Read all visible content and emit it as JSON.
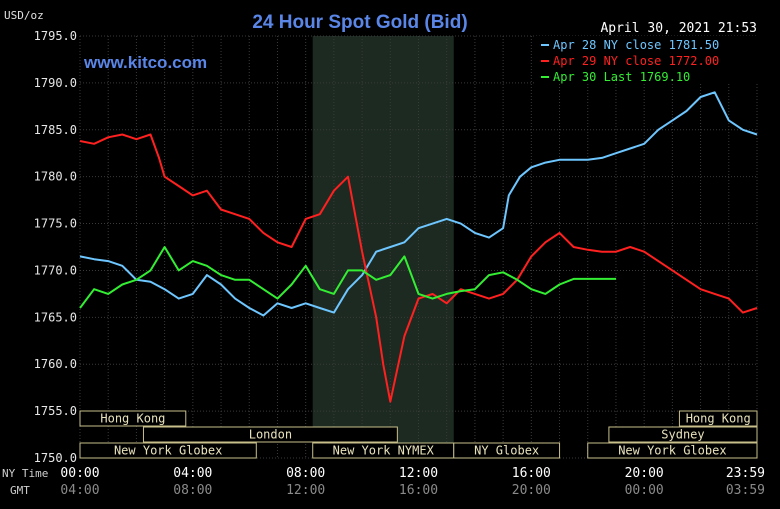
{
  "header": {
    "unit": "USD/oz",
    "title": "24 Hour Spot Gold (Bid)",
    "timestamp": "April 30, 2021 21:53",
    "brand": "www.kitco.com"
  },
  "legend": [
    {
      "text": "Apr 28 NY close 1781.50",
      "color": "#6ec6ff"
    },
    {
      "text": "Apr 29 NY close 1772.00",
      "color": "#ff2020"
    },
    {
      "text": "Apr 30 Last 1769.10",
      "color": "#33ee33"
    }
  ],
  "axes_labels": {
    "nytime": "NY Time",
    "gmt": "GMT"
  },
  "sessions": [
    {
      "label": "Hong Kong",
      "row": 0,
      "start": 0,
      "end": 3.75
    },
    {
      "label": "Hong Kong",
      "row": 0,
      "start": 21.25,
      "end": 24
    },
    {
      "label": "London",
      "row": 1,
      "start": 2.25,
      "end": 11.25
    },
    {
      "label": "Sydney",
      "row": 1,
      "start": 18.75,
      "end": 24
    },
    {
      "label": "New York Globex",
      "row": 2,
      "start": 0,
      "end": 6.25
    },
    {
      "label": "New York NYMEX",
      "row": 2,
      "start": 8.25,
      "end": 13.25
    },
    {
      "label": "NY Globex",
      "row": 2,
      "start": 13.25,
      "end": 17
    },
    {
      "label": "New York Globex",
      "row": 2,
      "start": 18,
      "end": 24
    }
  ],
  "chart_data": {
    "type": "line",
    "title": "24 Hour Spot Gold (Bid)",
    "ylabel": "USD/oz",
    "ylim": [
      1750,
      1795
    ],
    "yticks": [
      "1795.0",
      "1790.0",
      "1785.0",
      "1780.0",
      "1775.0",
      "1770.0",
      "1765.0",
      "1760.0",
      "1755.0",
      "1750.0"
    ],
    "xlim": [
      0,
      24
    ],
    "xticks_ny": [
      "00:00",
      "04:00",
      "08:00",
      "12:00",
      "16:00",
      "20:00",
      "23:59"
    ],
    "xticks_gmt": [
      "04:00",
      "08:00",
      "12:00",
      "16:00",
      "20:00",
      "00:00",
      "03:59"
    ],
    "grid": true,
    "legend_position": "top-right",
    "shaded_region": [
      8.25,
      13.25
    ],
    "series": [
      {
        "name": "Apr 28 NY close 1781.50",
        "color": "#6ec6ff",
        "points": [
          [
            0,
            1771.5
          ],
          [
            0.5,
            1771.2
          ],
          [
            1,
            1771
          ],
          [
            1.5,
            1770.5
          ],
          [
            2,
            1769
          ],
          [
            2.5,
            1768.8
          ],
          [
            3,
            1768
          ],
          [
            3.5,
            1767
          ],
          [
            4,
            1767.5
          ],
          [
            4.5,
            1769.5
          ],
          [
            5,
            1768.5
          ],
          [
            5.5,
            1767
          ],
          [
            6,
            1766
          ],
          [
            6.5,
            1765.2
          ],
          [
            7,
            1766.5
          ],
          [
            7.5,
            1766
          ],
          [
            8,
            1766.5
          ],
          [
            8.5,
            1766
          ],
          [
            9,
            1765.5
          ],
          [
            9.5,
            1768
          ],
          [
            10,
            1769.5
          ],
          [
            10.5,
            1772
          ],
          [
            11,
            1772.5
          ],
          [
            11.5,
            1773
          ],
          [
            12,
            1774.5
          ],
          [
            12.5,
            1775
          ],
          [
            13,
            1775.5
          ],
          [
            13.5,
            1775
          ],
          [
            14,
            1774
          ],
          [
            14.5,
            1773.5
          ],
          [
            15,
            1774.5
          ],
          [
            15.2,
            1778
          ],
          [
            15.6,
            1780
          ],
          [
            16,
            1781
          ],
          [
            16.5,
            1781.5
          ],
          [
            17,
            1781.8
          ],
          [
            17.5,
            1781.8
          ],
          [
            18,
            1781.8
          ],
          [
            18.5,
            1782
          ],
          [
            19,
            1782.5
          ],
          [
            19.5,
            1783
          ],
          [
            20,
            1783.5
          ],
          [
            20.5,
            1785
          ],
          [
            21,
            1786
          ],
          [
            21.5,
            1787
          ],
          [
            22,
            1788.5
          ],
          [
            22.5,
            1789
          ],
          [
            23,
            1786
          ],
          [
            23.5,
            1785
          ],
          [
            24,
            1784.5
          ]
        ]
      },
      {
        "name": "Apr 29 NY close 1772.00",
        "color": "#ff2020",
        "points": [
          [
            0,
            1783.8
          ],
          [
            0.5,
            1783.5
          ],
          [
            1,
            1784.2
          ],
          [
            1.5,
            1784.5
          ],
          [
            2,
            1784
          ],
          [
            2.5,
            1784.5
          ],
          [
            2.8,
            1782
          ],
          [
            3,
            1780
          ],
          [
            3.5,
            1779
          ],
          [
            4,
            1778
          ],
          [
            4.5,
            1778.5
          ],
          [
            5,
            1776.5
          ],
          [
            5.5,
            1776
          ],
          [
            6,
            1775.5
          ],
          [
            6.5,
            1774
          ],
          [
            7,
            1773
          ],
          [
            7.5,
            1772.5
          ],
          [
            8,
            1775.5
          ],
          [
            8.5,
            1776
          ],
          [
            9,
            1778.5
          ],
          [
            9.5,
            1780
          ],
          [
            10,
            1772
          ],
          [
            10.5,
            1765
          ],
          [
            10.75,
            1760
          ],
          [
            11,
            1756
          ],
          [
            11.5,
            1763
          ],
          [
            12,
            1767
          ],
          [
            12.5,
            1767.5
          ],
          [
            13,
            1766.5
          ],
          [
            13.5,
            1768
          ],
          [
            14,
            1767.5
          ],
          [
            14.5,
            1767
          ],
          [
            15,
            1767.5
          ],
          [
            15.5,
            1769
          ],
          [
            16,
            1771.5
          ],
          [
            16.5,
            1773
          ],
          [
            17,
            1774
          ],
          [
            17.5,
            1772.5
          ],
          [
            18,
            1772.2
          ],
          [
            18.5,
            1772
          ],
          [
            19,
            1772
          ],
          [
            19.5,
            1772.5
          ],
          [
            20,
            1772
          ],
          [
            20.5,
            1771
          ],
          [
            21,
            1770
          ],
          [
            21.5,
            1769
          ],
          [
            22,
            1768
          ],
          [
            22.5,
            1767.5
          ],
          [
            23,
            1767
          ],
          [
            23.5,
            1765.5
          ],
          [
            24,
            1766
          ]
        ]
      },
      {
        "name": "Apr 30 Last 1769.10",
        "color": "#33ee33",
        "points": [
          [
            0,
            1766
          ],
          [
            0.5,
            1768
          ],
          [
            1,
            1767.5
          ],
          [
            1.5,
            1768.5
          ],
          [
            2,
            1769
          ],
          [
            2.5,
            1770
          ],
          [
            3,
            1772.5
          ],
          [
            3.5,
            1770
          ],
          [
            4,
            1771
          ],
          [
            4.5,
            1770.5
          ],
          [
            5,
            1769.5
          ],
          [
            5.5,
            1769
          ],
          [
            6,
            1769
          ],
          [
            6.5,
            1768
          ],
          [
            7,
            1767
          ],
          [
            7.5,
            1768.5
          ],
          [
            8,
            1770.5
          ],
          [
            8.5,
            1768
          ],
          [
            9,
            1767.5
          ],
          [
            9.5,
            1770
          ],
          [
            10,
            1770
          ],
          [
            10.5,
            1769
          ],
          [
            11,
            1769.5
          ],
          [
            11.5,
            1771.5
          ],
          [
            12,
            1767.5
          ],
          [
            12.5,
            1767
          ],
          [
            13,
            1767.5
          ],
          [
            13.5,
            1767.8
          ],
          [
            14,
            1768
          ],
          [
            14.5,
            1769.5
          ],
          [
            15,
            1769.8
          ],
          [
            15.5,
            1769
          ],
          [
            16,
            1768
          ],
          [
            16.5,
            1767.5
          ],
          [
            17,
            1768.5
          ],
          [
            17.5,
            1769.1
          ],
          [
            18,
            1769.1
          ],
          [
            18.5,
            1769.1
          ],
          [
            19,
            1769.1
          ]
        ]
      }
    ]
  }
}
